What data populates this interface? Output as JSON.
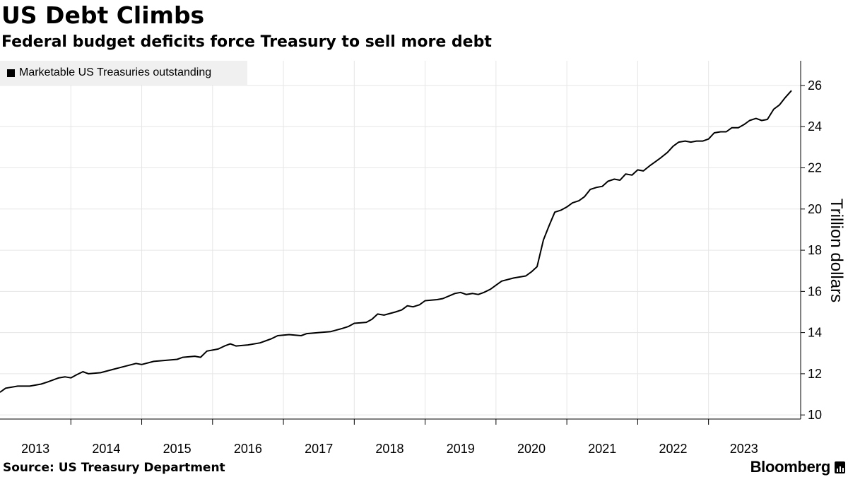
{
  "header": {
    "title": "US Debt Climbs",
    "subtitle": "Federal budget deficits force Treasury to sell more debt"
  },
  "footer": {
    "source": "Source: US Treasury Department",
    "brand": "Bloomberg"
  },
  "chart_data": {
    "type": "line",
    "title": "US Debt Climbs",
    "subtitle": "Federal budget deficits force Treasury to sell more debt",
    "xlabel": "",
    "ylabel": "Trillion dollars",
    "ylim": [
      9.8,
      27.2
    ],
    "xlim": [
      2012.5,
      2023.8
    ],
    "y_ticks": [
      10,
      12,
      14,
      16,
      18,
      20,
      22,
      24,
      26
    ],
    "x_labels": [
      "2013",
      "2014",
      "2015",
      "2016",
      "2017",
      "2018",
      "2019",
      "2020",
      "2021",
      "2022",
      "2023"
    ],
    "grid": true,
    "legend": "top-left",
    "series": [
      {
        "name": "Marketable US Treasuries outstanding",
        "color": "#000000",
        "points": [
          [
            2012.5,
            11.1
          ],
          [
            2012.58,
            11.3
          ],
          [
            2012.75,
            11.4
          ],
          [
            2012.92,
            11.4
          ],
          [
            2013.08,
            11.5
          ],
          [
            2013.17,
            11.6
          ],
          [
            2013.33,
            11.8
          ],
          [
            2013.42,
            11.85
          ],
          [
            2013.5,
            11.8
          ],
          [
            2013.58,
            11.95
          ],
          [
            2013.67,
            12.1
          ],
          [
            2013.75,
            12.0
          ],
          [
            2013.92,
            12.05
          ],
          [
            2014.08,
            12.2
          ],
          [
            2014.25,
            12.35
          ],
          [
            2014.42,
            12.5
          ],
          [
            2014.5,
            12.45
          ],
          [
            2014.67,
            12.6
          ],
          [
            2014.83,
            12.65
          ],
          [
            2015.0,
            12.7
          ],
          [
            2015.08,
            12.8
          ],
          [
            2015.25,
            12.85
          ],
          [
            2015.33,
            12.8
          ],
          [
            2015.42,
            13.1
          ],
          [
            2015.5,
            13.15
          ],
          [
            2015.58,
            13.2
          ],
          [
            2015.67,
            13.35
          ],
          [
            2015.75,
            13.45
          ],
          [
            2015.83,
            13.35
          ],
          [
            2016.0,
            13.4
          ],
          [
            2016.17,
            13.5
          ],
          [
            2016.33,
            13.7
          ],
          [
            2016.42,
            13.85
          ],
          [
            2016.58,
            13.9
          ],
          [
            2016.75,
            13.85
          ],
          [
            2016.83,
            13.95
          ],
          [
            2017.0,
            14.0
          ],
          [
            2017.17,
            14.05
          ],
          [
            2017.33,
            14.2
          ],
          [
            2017.42,
            14.3
          ],
          [
            2017.5,
            14.45
          ],
          [
            2017.67,
            14.5
          ],
          [
            2017.75,
            14.65
          ],
          [
            2017.83,
            14.9
          ],
          [
            2017.92,
            14.85
          ],
          [
            2018.08,
            15.0
          ],
          [
            2018.17,
            15.1
          ],
          [
            2018.25,
            15.3
          ],
          [
            2018.33,
            15.25
          ],
          [
            2018.42,
            15.35
          ],
          [
            2018.5,
            15.55
          ],
          [
            2018.67,
            15.6
          ],
          [
            2018.75,
            15.65
          ],
          [
            2018.92,
            15.9
          ],
          [
            2019.0,
            15.95
          ],
          [
            2019.08,
            15.85
          ],
          [
            2019.17,
            15.9
          ],
          [
            2019.25,
            15.85
          ],
          [
            2019.33,
            15.95
          ],
          [
            2019.42,
            16.1
          ],
          [
            2019.5,
            16.3
          ],
          [
            2019.58,
            16.5
          ],
          [
            2019.75,
            16.65
          ],
          [
            2019.92,
            16.75
          ],
          [
            2020.0,
            16.95
          ],
          [
            2020.08,
            17.2
          ],
          [
            2020.17,
            18.5
          ],
          [
            2020.25,
            19.2
          ],
          [
            2020.33,
            19.85
          ],
          [
            2020.42,
            19.95
          ],
          [
            2020.5,
            20.1
          ],
          [
            2020.58,
            20.3
          ],
          [
            2020.67,
            20.4
          ],
          [
            2020.75,
            20.6
          ],
          [
            2020.83,
            20.95
          ],
          [
            2020.92,
            21.05
          ],
          [
            2021.0,
            21.1
          ],
          [
            2021.08,
            21.35
          ],
          [
            2021.17,
            21.45
          ],
          [
            2021.25,
            21.4
          ],
          [
            2021.33,
            21.7
          ],
          [
            2021.42,
            21.65
          ],
          [
            2021.5,
            21.9
          ],
          [
            2021.58,
            21.85
          ],
          [
            2021.67,
            22.1
          ],
          [
            2021.75,
            22.3
          ],
          [
            2021.83,
            22.5
          ],
          [
            2021.92,
            22.75
          ],
          [
            2022.0,
            23.05
          ],
          [
            2022.08,
            23.25
          ],
          [
            2022.17,
            23.3
          ],
          [
            2022.25,
            23.25
          ],
          [
            2022.33,
            23.3
          ],
          [
            2022.42,
            23.3
          ],
          [
            2022.5,
            23.4
          ],
          [
            2022.58,
            23.7
          ],
          [
            2022.67,
            23.75
          ],
          [
            2022.75,
            23.75
          ],
          [
            2022.83,
            23.95
          ],
          [
            2022.92,
            23.95
          ],
          [
            2023.0,
            24.1
          ],
          [
            2023.08,
            24.3
          ],
          [
            2023.17,
            24.4
          ],
          [
            2023.25,
            24.3
          ],
          [
            2023.33,
            24.35
          ],
          [
            2023.42,
            24.85
          ],
          [
            2023.5,
            25.05
          ],
          [
            2023.58,
            25.4
          ],
          [
            2023.67,
            25.75
          ]
        ]
      }
    ]
  }
}
